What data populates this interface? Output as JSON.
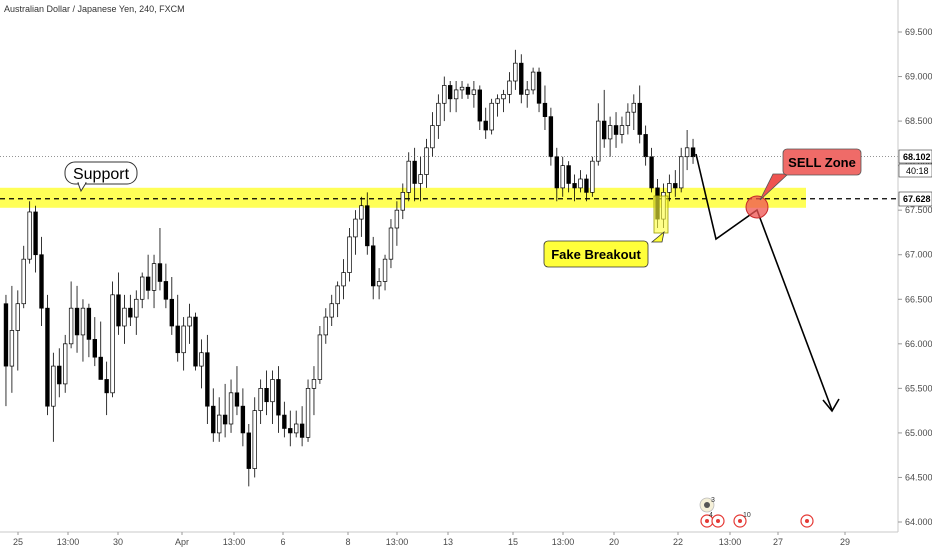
{
  "header": {
    "title": "Australian Dollar / Japanese Yen, 240, FXCM"
  },
  "chart_data": {
    "type": "candlestick",
    "ylim": [
      63.95,
      69.75
    ],
    "y_ticks": [
      "69.500",
      "69.000",
      "68.500",
      "68.000",
      "67.500",
      "67.000",
      "66.500",
      "66.000",
      "65.500",
      "65.000",
      "64.500",
      "64.000"
    ],
    "x_ticks": [
      "25",
      "13:00",
      "30",
      "Apr",
      "13:00",
      "6",
      "8",
      "13:00",
      "13",
      "15",
      "13:00",
      "20",
      "22",
      "13:00",
      "27",
      "29"
    ],
    "price_labels": {
      "current_price": "68.102",
      "countdown": "40:18",
      "level": "67.628"
    },
    "support_level": 67.628,
    "current_price_value": 68.102,
    "colors": {
      "up_fill": "#ffffff",
      "down_fill": "#000000",
      "support_zone": "#ffff3a",
      "sell_zone": "#ef5350"
    },
    "ohlc": [
      [
        66.45,
        66.55,
        65.3,
        65.75
      ],
      [
        65.75,
        66.65,
        65.45,
        66.15
      ],
      [
        66.15,
        66.6,
        65.7,
        66.45
      ],
      [
        66.45,
        67.1,
        66.4,
        66.95
      ],
      [
        66.95,
        67.6,
        66.9,
        67.48
      ],
      [
        67.48,
        67.55,
        66.8,
        67.0
      ],
      [
        67.0,
        67.2,
        66.2,
        66.4
      ],
      [
        66.4,
        66.55,
        65.2,
        65.3
      ],
      [
        65.3,
        65.9,
        64.9,
        65.75
      ],
      [
        65.75,
        65.95,
        65.4,
        65.55
      ],
      [
        65.55,
        66.1,
        65.45,
        66.0
      ],
      [
        66.0,
        66.7,
        65.95,
        66.4
      ],
      [
        66.4,
        66.65,
        65.9,
        66.1
      ],
      [
        66.1,
        66.5,
        65.8,
        66.4
      ],
      [
        66.4,
        66.45,
        65.85,
        66.05
      ],
      [
        66.05,
        66.3,
        65.75,
        65.85
      ],
      [
        65.85,
        66.25,
        65.6,
        65.6
      ],
      [
        65.6,
        65.8,
        65.2,
        65.45
      ],
      [
        65.45,
        66.7,
        65.4,
        66.55
      ],
      [
        66.55,
        66.8,
        66.1,
        66.2
      ],
      [
        66.2,
        66.55,
        66.0,
        66.4
      ],
      [
        66.4,
        66.55,
        66.2,
        66.3
      ],
      [
        66.3,
        66.6,
        66.1,
        66.5
      ],
      [
        66.5,
        66.8,
        66.4,
        66.75
      ],
      [
        66.75,
        67.0,
        66.5,
        66.6
      ],
      [
        66.6,
        67.0,
        66.4,
        66.9
      ],
      [
        66.9,
        67.3,
        66.6,
        66.7
      ],
      [
        66.7,
        66.9,
        66.4,
        66.5
      ],
      [
        66.5,
        66.75,
        66.1,
        66.2
      ],
      [
        66.2,
        66.55,
        65.8,
        65.9
      ],
      [
        65.9,
        66.3,
        65.7,
        66.2
      ],
      [
        66.2,
        66.45,
        66.0,
        66.3
      ],
      [
        66.3,
        66.35,
        65.7,
        65.75
      ],
      [
        65.75,
        66.05,
        65.5,
        65.9
      ],
      [
        65.9,
        66.1,
        65.1,
        65.3
      ],
      [
        65.3,
        65.5,
        64.9,
        65.0
      ],
      [
        65.0,
        65.4,
        64.9,
        65.2
      ],
      [
        65.2,
        65.55,
        64.95,
        65.1
      ],
      [
        65.1,
        65.6,
        65.0,
        65.45
      ],
      [
        65.45,
        65.75,
        65.2,
        65.3
      ],
      [
        65.3,
        65.5,
        64.85,
        65.0
      ],
      [
        65.0,
        65.1,
        64.4,
        64.6
      ],
      [
        64.6,
        65.4,
        64.5,
        65.25
      ],
      [
        65.25,
        65.6,
        65.1,
        65.5
      ],
      [
        65.5,
        65.7,
        65.2,
        65.35
      ],
      [
        65.35,
        65.7,
        65.1,
        65.6
      ],
      [
        65.6,
        65.75,
        65.0,
        65.2
      ],
      [
        65.2,
        65.35,
        64.95,
        65.05
      ],
      [
        65.05,
        65.25,
        64.85,
        65.0
      ],
      [
        65.0,
        65.25,
        64.95,
        65.1
      ],
      [
        65.1,
        65.3,
        64.85,
        64.95
      ],
      [
        64.95,
        65.6,
        64.9,
        65.5
      ],
      [
        65.5,
        65.75,
        65.2,
        65.6
      ],
      [
        65.6,
        66.2,
        65.55,
        66.1
      ],
      [
        66.1,
        66.4,
        66.0,
        66.3
      ],
      [
        66.3,
        66.55,
        66.2,
        66.45
      ],
      [
        66.45,
        66.7,
        66.3,
        66.65
      ],
      [
        66.65,
        66.95,
        66.5,
        66.8
      ],
      [
        66.8,
        67.3,
        66.7,
        67.2
      ],
      [
        67.2,
        67.5,
        67.0,
        67.4
      ],
      [
        67.4,
        67.65,
        67.2,
        67.55
      ],
      [
        67.55,
        67.7,
        67.0,
        67.1
      ],
      [
        67.1,
        67.2,
        66.5,
        66.65
      ],
      [
        66.65,
        66.85,
        66.5,
        66.7
      ],
      [
        66.7,
        67.0,
        66.6,
        66.95
      ],
      [
        66.95,
        67.4,
        66.85,
        67.3
      ],
      [
        67.3,
        67.6,
        67.1,
        67.5
      ],
      [
        67.5,
        67.8,
        67.4,
        67.7
      ],
      [
        67.7,
        68.15,
        67.6,
        68.05
      ],
      [
        68.05,
        68.2,
        67.6,
        67.8
      ],
      [
        67.8,
        68.1,
        67.6,
        67.9
      ],
      [
        67.9,
        68.3,
        67.75,
        68.2
      ],
      [
        68.2,
        68.6,
        68.1,
        68.45
      ],
      [
        68.45,
        68.8,
        68.3,
        68.7
      ],
      [
        68.7,
        69.0,
        68.5,
        68.9
      ],
      [
        68.9,
        68.95,
        68.6,
        68.75
      ],
      [
        68.75,
        68.95,
        68.6,
        68.85
      ],
      [
        68.85,
        68.95,
        68.75,
        68.88
      ],
      [
        68.88,
        68.92,
        68.75,
        68.8
      ],
      [
        68.8,
        68.95,
        68.65,
        68.85
      ],
      [
        68.85,
        68.9,
        68.4,
        68.5
      ],
      [
        68.5,
        68.65,
        68.3,
        68.4
      ],
      [
        68.4,
        68.75,
        68.35,
        68.7
      ],
      [
        68.7,
        68.8,
        68.55,
        68.75
      ],
      [
        68.75,
        68.85,
        68.6,
        68.8
      ],
      [
        68.8,
        69.05,
        68.7,
        68.95
      ],
      [
        68.95,
        69.3,
        68.85,
        69.15
      ],
      [
        69.15,
        69.25,
        68.7,
        68.8
      ],
      [
        68.8,
        68.95,
        68.65,
        68.85
      ],
      [
        68.85,
        69.1,
        68.8,
        69.05
      ],
      [
        69.05,
        69.1,
        68.6,
        68.7
      ],
      [
        68.7,
        68.9,
        68.4,
        68.55
      ],
      [
        68.55,
        68.65,
        68.0,
        68.1
      ],
      [
        68.1,
        68.2,
        67.6,
        67.75
      ],
      [
        67.75,
        68.1,
        67.65,
        68.0
      ],
      [
        68.0,
        68.05,
        67.7,
        67.8
      ],
      [
        67.8,
        67.9,
        67.6,
        67.75
      ],
      [
        67.75,
        67.95,
        67.7,
        67.85
      ],
      [
        67.85,
        67.9,
        67.6,
        67.7
      ],
      [
        67.7,
        68.1,
        67.65,
        68.05
      ],
      [
        68.05,
        68.7,
        68.0,
        68.5
      ],
      [
        68.5,
        68.85,
        68.2,
        68.3
      ],
      [
        68.3,
        68.55,
        68.1,
        68.45
      ],
      [
        68.45,
        68.6,
        68.2,
        68.35
      ],
      [
        68.35,
        68.55,
        68.25,
        68.45
      ],
      [
        68.45,
        68.7,
        68.35,
        68.6
      ],
      [
        68.6,
        68.8,
        68.4,
        68.7
      ],
      [
        68.7,
        68.9,
        68.25,
        68.35
      ],
      [
        68.35,
        68.45,
        68.0,
        68.1
      ],
      [
        68.1,
        68.2,
        67.7,
        67.75
      ],
      [
        67.75,
        67.85,
        67.3,
        67.4
      ],
      [
        67.4,
        67.8,
        67.3,
        67.7
      ],
      [
        67.7,
        67.9,
        67.6,
        67.8
      ],
      [
        67.8,
        67.95,
        67.65,
        67.75
      ],
      [
        67.75,
        68.2,
        67.7,
        68.1
      ],
      [
        68.1,
        68.4,
        67.95,
        68.2
      ],
      [
        68.2,
        68.3,
        68.02,
        68.1
      ]
    ]
  },
  "annotations": {
    "support_label": "Support",
    "fake_breakout_label": "Fake Breakout",
    "sell_zone_label": "SELL Zone"
  },
  "footer_badges": {
    "earnings_count_1": "3",
    "event_count_1": "4",
    "event_count_2": "10"
  },
  "icons": {
    "event_icon": "event-flag-icon",
    "earnings_icon": "earnings-icon"
  }
}
